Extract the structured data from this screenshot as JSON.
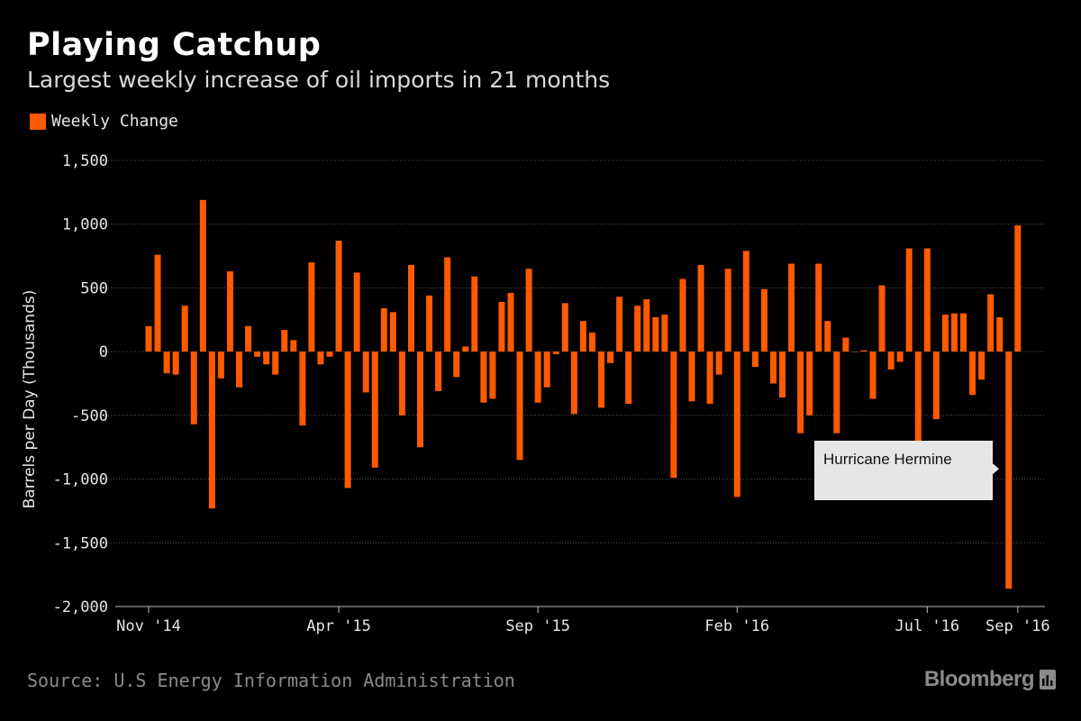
{
  "title": "Playing Catchup",
  "subtitle": "Largest weekly increase of oil imports in 21 months",
  "legend": {
    "label": "Weekly Change",
    "color": "#ff5a00"
  },
  "source": "Source: U.S Energy Information Administration",
  "brand": "Bloomberg",
  "annotation": {
    "text": "Hurricane Hermine",
    "bar_index": 96
  },
  "colors": {
    "bar": "#ff5a00",
    "background": "#000000",
    "grid": "#555555",
    "annotation_bg": "#e6e6e6"
  },
  "chart_data": {
    "type": "bar",
    "ylabel": "Barrels per Day (Thousands)",
    "ylim": [
      -2000,
      1500
    ],
    "yticks": [
      1500,
      1000,
      500,
      0,
      -500,
      -1000,
      -1500,
      -2000
    ],
    "ytick_labels": [
      "1,500",
      "1,000",
      "500",
      "0",
      "-500",
      "-1,000",
      "-1,500",
      "-2,000"
    ],
    "xticks": [
      {
        "label": "Nov '14",
        "index": 0
      },
      {
        "label": "Apr '15",
        "index": 21
      },
      {
        "label": "Sep '15",
        "index": 43
      },
      {
        "label": "Feb '16",
        "index": 65
      },
      {
        "label": "Jul '16",
        "index": 86
      },
      {
        "label": "Sep '16",
        "index": 96
      }
    ],
    "grid": true,
    "legend_position": "top-left",
    "series": [
      {
        "name": "Weekly Change",
        "values": [
          200,
          760,
          -170,
          -180,
          360,
          -570,
          1190,
          -1230,
          -210,
          630,
          -280,
          200,
          -40,
          -100,
          -180,
          170,
          90,
          -580,
          700,
          -100,
          -40,
          870,
          -1070,
          620,
          -320,
          -910,
          340,
          310,
          -500,
          680,
          -750,
          440,
          -310,
          740,
          -200,
          40,
          590,
          -400,
          -370,
          390,
          460,
          -850,
          650,
          -400,
          -280,
          -20,
          380,
          -490,
          240,
          150,
          -440,
          -90,
          430,
          -410,
          360,
          410,
          270,
          290,
          -990,
          570,
          -390,
          680,
          -410,
          -180,
          650,
          -1140,
          790,
          -120,
          490,
          -250,
          -360,
          690,
          -640,
          -500,
          690,
          240,
          -640,
          110,
          0,
          10,
          -370,
          520,
          -140,
          -80,
          810,
          -790,
          810,
          -530,
          290,
          300,
          300,
          -340,
          -220,
          450,
          270,
          -1860,
          990
        ]
      }
    ]
  }
}
